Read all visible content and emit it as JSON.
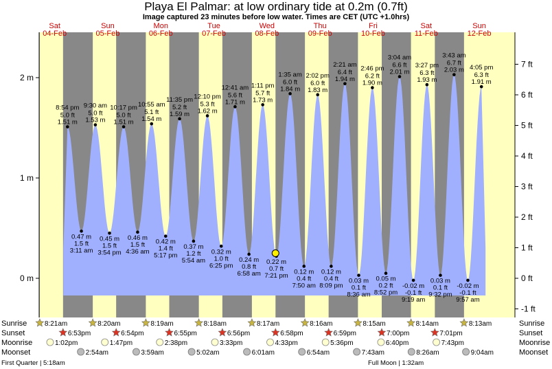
{
  "header": {
    "title": "Playa El Palmar: at low  ordinary tide at 0.2m (0.7ft)",
    "subtitle": "Image captured 23 minutes before low water. Times are CET (UTC +1.0hrs)"
  },
  "colors": {
    "night": "#888888",
    "day": "#ffffc0",
    "water": "#a0b0ff",
    "dayLabel": "#cc0000",
    "sun": "#c8b440",
    "sunset": "#dd3322",
    "moonrise": "#ffffd0",
    "moonset": "#bbbbbb"
  },
  "chart_data": {
    "type": "area",
    "days": [
      {
        "name": "Sat",
        "date": "04-Feb"
      },
      {
        "name": "Sun",
        "date": "05-Feb"
      },
      {
        "name": "Mon",
        "date": "06-Feb"
      },
      {
        "name": "Tue",
        "date": "07-Feb"
      },
      {
        "name": "Wed",
        "date": "08-Feb"
      },
      {
        "name": "Thu",
        "date": "09-Feb"
      },
      {
        "name": "Fri",
        "date": "10-Feb"
      },
      {
        "name": "Sat",
        "date": "11-Feb"
      },
      {
        "name": "Sun",
        "date": "12-Feb"
      }
    ],
    "y_left_ticks": [
      {
        "value": 0,
        "label": "0 m"
      },
      {
        "value": 1,
        "label": "1 m"
      },
      {
        "value": 2,
        "label": "2 m"
      }
    ],
    "y_right_ticks": [
      {
        "ft": -1,
        "label": "-1 ft"
      },
      {
        "ft": 0,
        "label": "0 ft"
      },
      {
        "ft": 1,
        "label": "1 ft"
      },
      {
        "ft": 2,
        "label": "2 ft"
      },
      {
        "ft": 3,
        "label": "3 ft"
      },
      {
        "ft": 4,
        "label": "4 ft"
      },
      {
        "ft": 5,
        "label": "5 ft"
      },
      {
        "ft": 6,
        "label": "6 ft"
      },
      {
        "ft": 7,
        "label": "7 ft"
      }
    ],
    "ylim_m": [
      -0.35,
      2.4
    ],
    "tides": [
      {
        "type": "high",
        "day": 0,
        "time": "8:54 pm",
        "ft": "5.0 ft",
        "m": 1.51,
        "m_label": "1.51 m"
      },
      {
        "type": "low",
        "day": 1,
        "time": "3:11 am",
        "ft": "1.5 ft",
        "m": 0.47,
        "m_label": "0.47 m"
      },
      {
        "type": "high",
        "day": 1,
        "time": "9:30 am",
        "ft": "5.0 ft",
        "m": 1.53,
        "m_label": "1.53 m"
      },
      {
        "type": "low",
        "day": 1,
        "time": "3:54 pm",
        "ft": "1.5 ft",
        "m": 0.45,
        "m_label": "0.45 m"
      },
      {
        "type": "high",
        "day": 1,
        "time": "10:17 pm",
        "ft": "5.0 ft",
        "m": 1.51,
        "m_label": "1.51 m"
      },
      {
        "type": "low",
        "day": 2,
        "time": "4:36 am",
        "ft": "1.5 ft",
        "m": 0.46,
        "m_label": "0.46 m"
      },
      {
        "type": "high",
        "day": 2,
        "time": "10:55 am",
        "ft": "5.1 ft",
        "m": 1.54,
        "m_label": "1.54 m"
      },
      {
        "type": "low",
        "day": 2,
        "time": "5:17 pm",
        "ft": "1.4 ft",
        "m": 0.42,
        "m_label": "0.42 m"
      },
      {
        "type": "high",
        "day": 2,
        "time": "11:35 pm",
        "ft": "5.2 ft",
        "m": 1.59,
        "m_label": "1.59 m"
      },
      {
        "type": "low",
        "day": 3,
        "time": "5:54 am",
        "ft": "1.2 ft",
        "m": 0.37,
        "m_label": "0.37 m"
      },
      {
        "type": "high",
        "day": 3,
        "time": "12:10 pm",
        "ft": "5.3 ft",
        "m": 1.62,
        "m_label": "1.62 m"
      },
      {
        "type": "low",
        "day": 3,
        "time": "6:25 pm",
        "ft": "1.0 ft",
        "m": 0.32,
        "m_label": "0.32 m"
      },
      {
        "type": "high",
        "day": 4,
        "time": "12:41 am",
        "ft": "5.6 ft",
        "m": 1.71,
        "m_label": "1.71 m"
      },
      {
        "type": "low",
        "day": 4,
        "time": "6:58 am",
        "ft": "0.8 ft",
        "m": 0.24,
        "m_label": "0.24 m"
      },
      {
        "type": "high",
        "day": 4,
        "time": "1:11 pm",
        "ft": "5.7 ft",
        "m": 1.73,
        "m_label": "1.73 m"
      },
      {
        "type": "low",
        "day": 4,
        "time": "7:21 pm",
        "ft": "0.7 ft",
        "m": 0.22,
        "m_label": "0.22 m"
      },
      {
        "type": "high",
        "day": 5,
        "time": "1:35 am",
        "ft": "6.0 ft",
        "m": 1.84,
        "m_label": "1.84 m"
      },
      {
        "type": "low",
        "day": 5,
        "time": "7:50 am",
        "ft": "0.4 ft",
        "m": 0.12,
        "m_label": "0.12 m"
      },
      {
        "type": "high",
        "day": 5,
        "time": "2:02 pm",
        "ft": "6.0 ft",
        "m": 1.83,
        "m_label": "1.83 m"
      },
      {
        "type": "low",
        "day": 5,
        "time": "8:09 pm",
        "ft": "0.4 ft",
        "m": 0.12,
        "m_label": "0.12 m"
      },
      {
        "type": "high",
        "day": 6,
        "time": "2:21 am",
        "ft": "6.4 ft",
        "m": 1.94,
        "m_label": "1.94 m"
      },
      {
        "type": "low",
        "day": 6,
        "time": "8:36 am",
        "ft": "0.1 ft",
        "m": 0.03,
        "m_label": "0.03 m"
      },
      {
        "type": "high",
        "day": 6,
        "time": "2:46 pm",
        "ft": "6.2 ft",
        "m": 1.9,
        "m_label": "1.90 m"
      },
      {
        "type": "low",
        "day": 6,
        "time": "8:52 pm",
        "ft": "0.2 ft",
        "m": 0.05,
        "m_label": "0.05 m"
      },
      {
        "type": "high",
        "day": 7,
        "time": "3:04 am",
        "ft": "6.6 ft",
        "m": 2.01,
        "m_label": "2.01 m"
      },
      {
        "type": "low",
        "day": 7,
        "time": "9:19 am",
        "ft": "-0.1 ft",
        "m": -0.02,
        "m_label": "-0.02 m"
      },
      {
        "type": "high",
        "day": 7,
        "time": "3:27 pm",
        "ft": "6.3 ft",
        "m": 1.93,
        "m_label": "1.93 m"
      },
      {
        "type": "low",
        "day": 7,
        "time": "9:32 pm",
        "ft": "0.1 ft",
        "m": 0.03,
        "m_label": "0.03 m"
      },
      {
        "type": "high",
        "day": 8,
        "time": "3:43 am",
        "ft": "6.7 ft",
        "m": 2.03,
        "m_label": "2.03 m"
      },
      {
        "type": "low",
        "day": 8,
        "time": "9:57 am",
        "ft": "-0.1 ft",
        "m": -0.02,
        "m_label": "-0.02 m"
      },
      {
        "type": "high",
        "day": 8,
        "time": "4:05 pm",
        "ft": "6.3 ft",
        "m": 1.91,
        "m_label": "1.91 m"
      }
    ],
    "current": {
      "day": 4,
      "time": "6:58 pm",
      "m": 0.25
    },
    "sun": [
      {
        "rise": "8:21am",
        "set": "6:53pm"
      },
      {
        "rise": "8:20am",
        "set": "6:54pm"
      },
      {
        "rise": "8:19am",
        "set": "6:55pm"
      },
      {
        "rise": "8:18am",
        "set": "6:56pm"
      },
      {
        "rise": "8:17am",
        "set": "6:58pm"
      },
      {
        "rise": "8:16am",
        "set": "6:59pm"
      },
      {
        "rise": "8:15am",
        "set": "7:00pm"
      },
      {
        "rise": "8:14am",
        "set": "7:01pm"
      },
      {
        "rise": "8:13am",
        "set": null
      }
    ],
    "moonrise": [
      {
        "day": 0,
        "time": "1:02pm"
      },
      {
        "day": 1,
        "time": "1:47pm"
      },
      {
        "day": 2,
        "time": "2:38pm"
      },
      {
        "day": 3,
        "time": "3:33pm"
      },
      {
        "day": 4,
        "time": "4:33pm"
      },
      {
        "day": 5,
        "time": "5:36pm"
      },
      {
        "day": 6,
        "time": "6:40pm"
      },
      {
        "day": 7,
        "time": "7:43pm"
      }
    ],
    "moonset": [
      {
        "day": 1,
        "time": "2:54am"
      },
      {
        "day": 2,
        "time": "3:59am"
      },
      {
        "day": 3,
        "time": "5:02am"
      },
      {
        "day": 4,
        "time": "6:01am"
      },
      {
        "day": 5,
        "time": "6:54am"
      },
      {
        "day": 6,
        "time": "7:43am"
      },
      {
        "day": 7,
        "time": "8:26am"
      },
      {
        "day": 8,
        "time": "9:04am"
      }
    ],
    "row_labels": {
      "sunrise": "Sunrise",
      "sunset": "Sunset",
      "moonrise": "Moonrise",
      "moonset": "Moonset"
    },
    "moon_phases": [
      {
        "text": "First Quarter | 5:18am",
        "align": "left"
      },
      {
        "text": "Full Moon | 1:32am",
        "align": "center"
      }
    ]
  }
}
